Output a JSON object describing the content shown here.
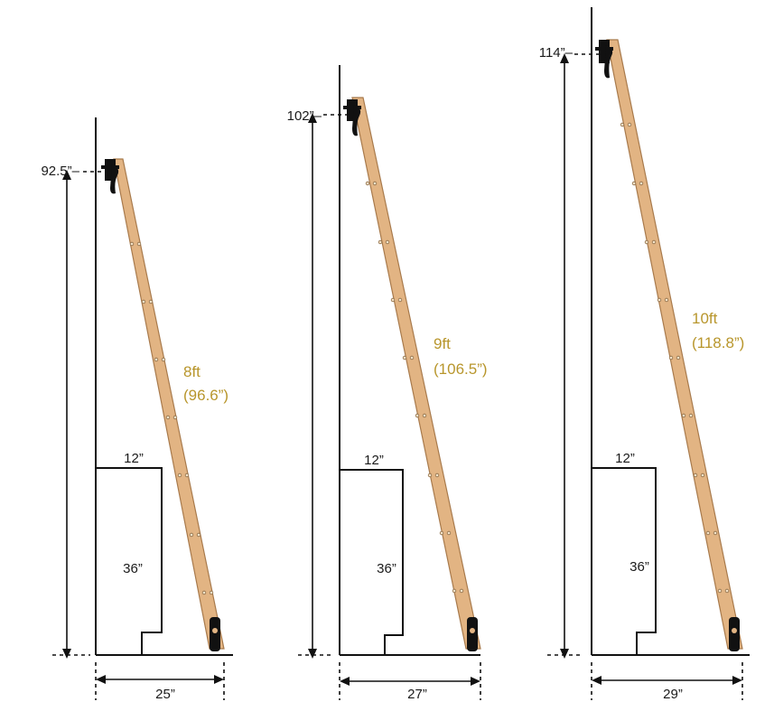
{
  "colors": {
    "ladder_wood": "#e2b483",
    "ladder_edge": "#a87a4c",
    "length_label": "#b8962c",
    "lines": "#111111"
  },
  "ladders": [
    {
      "height_label": "92.5”–",
      "length_ft": "8ft",
      "length_in": "(96.6”)",
      "cabinet_width": "12”",
      "cabinet_height": "36”",
      "offset": "25”"
    },
    {
      "height_label": "102”–",
      "length_ft": "9ft",
      "length_in": "(106.5”)",
      "cabinet_width": "12”",
      "cabinet_height": "36”",
      "offset": "27”"
    },
    {
      "height_label": "114”–",
      "length_ft": "10ft",
      "length_in": "(118.8”)",
      "cabinet_width": "12”",
      "cabinet_height": "36”",
      "offset": "29”"
    }
  ]
}
